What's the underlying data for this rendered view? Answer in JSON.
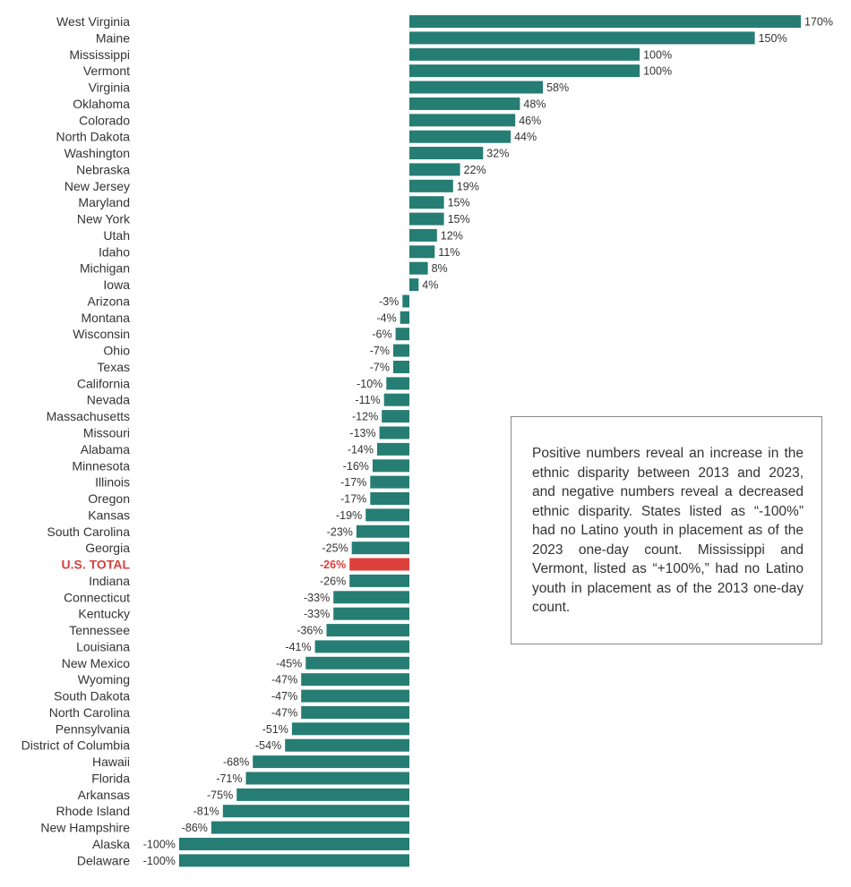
{
  "chart_data": {
    "type": "bar",
    "orientation": "horizontal",
    "title": "",
    "xlabel": "",
    "ylabel": "",
    "xlim": [
      -100,
      170
    ],
    "grid": false,
    "value_suffix": "%",
    "colors": {
      "default": "#267d74",
      "highlight": "#dd403a"
    },
    "highlight_category": "U.S. TOTAL",
    "categories": [
      "West Virginia",
      "Maine",
      "Mississippi",
      "Vermont",
      "Virginia",
      "Oklahoma",
      "Colorado",
      "North Dakota",
      "Washington",
      "Nebraska",
      "New Jersey",
      "Maryland",
      "New York",
      "Utah",
      "Idaho",
      "Michigan",
      "Iowa",
      "Arizona",
      "Montana",
      "Wisconsin",
      "Ohio",
      "Texas",
      "California",
      "Nevada",
      "Massachusetts",
      "Missouri",
      "Alabama",
      "Minnesota",
      "Illinois",
      "Oregon",
      "Kansas",
      "South Carolina",
      "Georgia",
      "U.S. TOTAL",
      "Indiana",
      "Connecticut",
      "Kentucky",
      "Tennessee",
      "Louisiana",
      "New Mexico",
      "Wyoming",
      "South Dakota",
      "North Carolina",
      "Pennsylvania",
      "District of Columbia",
      "Hawaii",
      "Florida",
      "Arkansas",
      "Rhode Island",
      "New Hampshire",
      "Alaska",
      "Delaware"
    ],
    "values": [
      170,
      150,
      100,
      100,
      58,
      48,
      46,
      44,
      32,
      22,
      19,
      15,
      15,
      12,
      11,
      8,
      4,
      -3,
      -4,
      -6,
      -7,
      -7,
      -10,
      -11,
      -12,
      -13,
      -14,
      -16,
      -17,
      -17,
      -19,
      -23,
      -25,
      -26,
      -26,
      -33,
      -33,
      -36,
      -41,
      -45,
      -47,
      -47,
      -47,
      -51,
      -54,
      -68,
      -71,
      -75,
      -81,
      -86,
      -100,
      -100
    ]
  },
  "note": {
    "text": "Positive numbers reveal an increase in the ethnic disparity between 2013 and 2023, and negative numbers reveal a de­creased ethnic disparity. States listed as “-100%” had no Latino youth in place­ment as of the 2023 one-day count. Mis­sissippi and Vermont, listed as “+100%,” had no Latino youth in placement as of the 2013 one-day count."
  }
}
